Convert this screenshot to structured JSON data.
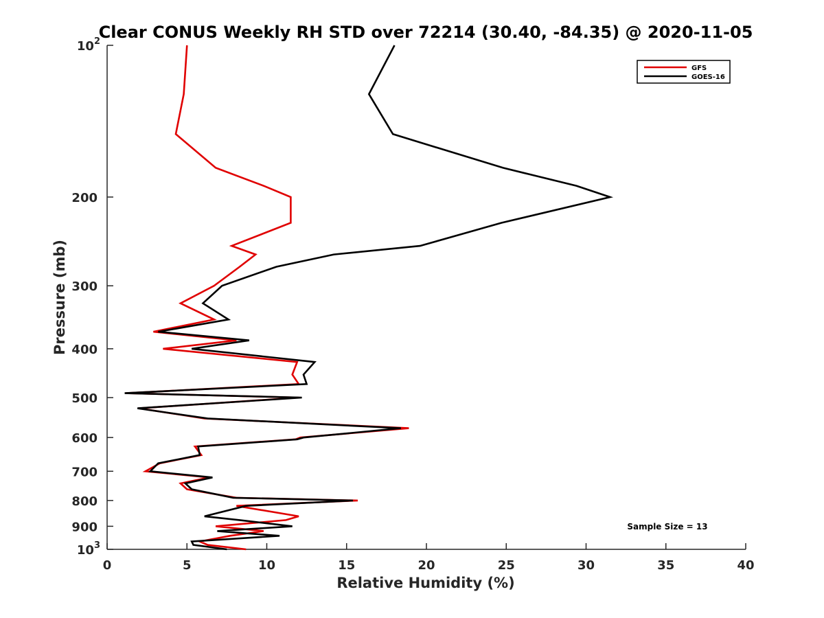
{
  "chart_data": {
    "type": "line",
    "title": "Clear CONUS Weekly RH STD over 72214 (30.40, -84.35) @ 2020-11-05",
    "xlabel": "Relative Humidity (%)",
    "ylabel": "Pressure (mb)",
    "xlim": [
      0,
      40
    ],
    "ylim": [
      100,
      1000
    ],
    "yscale": "log",
    "yreversed": true,
    "grid": false,
    "legend_position": "top-right",
    "x_ticks": [
      "0",
      "5",
      "10",
      "15",
      "20",
      "25",
      "30",
      "35",
      "40"
    ],
    "y_ticks": [
      {
        "value": 100,
        "base": "10",
        "exp": "2"
      },
      {
        "value": 200,
        "label": "200"
      },
      {
        "value": 300,
        "label": "300"
      },
      {
        "value": 400,
        "label": "400"
      },
      {
        "value": 500,
        "label": "500"
      },
      {
        "value": 600,
        "label": "600"
      },
      {
        "value": 700,
        "label": "700"
      },
      {
        "value": 800,
        "label": "800"
      },
      {
        "value": 900,
        "label": "900"
      },
      {
        "value": 1000,
        "base": "10",
        "exp": "3"
      }
    ],
    "annotation": "Sample Size = 13",
    "series": [
      {
        "name": "GFS",
        "color": "#e00000",
        "points": [
          [
            5.0,
            100
          ],
          [
            4.8,
            125
          ],
          [
            4.3,
            150
          ],
          [
            6.8,
            175
          ],
          [
            9.8,
            190
          ],
          [
            11.5,
            200
          ],
          [
            11.5,
            225
          ],
          [
            7.8,
            250
          ],
          [
            9.3,
            260
          ],
          [
            8.3,
            275
          ],
          [
            6.7,
            300
          ],
          [
            4.6,
            325
          ],
          [
            6.7,
            350
          ],
          [
            2.9,
            370
          ],
          [
            8.1,
            385
          ],
          [
            3.5,
            400
          ],
          [
            11.9,
            425
          ],
          [
            11.6,
            450
          ],
          [
            12.0,
            470
          ],
          [
            1.2,
            490
          ],
          [
            12.0,
            500
          ],
          [
            2.0,
            525
          ],
          [
            6.1,
            550
          ],
          [
            18.9,
            575
          ],
          [
            12.1,
            600
          ],
          [
            11.8,
            605
          ],
          [
            5.5,
            625
          ],
          [
            5.9,
            650
          ],
          [
            3.3,
            675
          ],
          [
            2.4,
            700
          ],
          [
            6.4,
            720
          ],
          [
            4.6,
            740
          ],
          [
            5.0,
            760
          ],
          [
            8.1,
            790
          ],
          [
            15.7,
            800
          ],
          [
            8.1,
            820
          ],
          [
            12.0,
            860
          ],
          [
            11.2,
            875
          ],
          [
            6.8,
            900
          ],
          [
            9.8,
            920
          ],
          [
            7.7,
            940
          ],
          [
            5.8,
            965
          ],
          [
            6.3,
            980
          ],
          [
            8.7,
            1000
          ]
        ]
      },
      {
        "name": "GOES-16",
        "color": "#000000",
        "points": [
          [
            18.0,
            100
          ],
          [
            16.4,
            125
          ],
          [
            17.9,
            150
          ],
          [
            24.8,
            175
          ],
          [
            29.4,
            190
          ],
          [
            31.5,
            200
          ],
          [
            24.7,
            225
          ],
          [
            19.6,
            250
          ],
          [
            14.2,
            260
          ],
          [
            10.6,
            275
          ],
          [
            7.2,
            300
          ],
          [
            6.0,
            325
          ],
          [
            7.6,
            350
          ],
          [
            3.2,
            370
          ],
          [
            8.9,
            385
          ],
          [
            5.3,
            400
          ],
          [
            13.0,
            425
          ],
          [
            12.3,
            450
          ],
          [
            12.5,
            470
          ],
          [
            1.1,
            490
          ],
          [
            12.2,
            500
          ],
          [
            1.9,
            525
          ],
          [
            6.3,
            550
          ],
          [
            18.4,
            575
          ],
          [
            12.3,
            600
          ],
          [
            11.9,
            605
          ],
          [
            5.7,
            625
          ],
          [
            5.8,
            650
          ],
          [
            3.2,
            675
          ],
          [
            2.7,
            700
          ],
          [
            6.6,
            720
          ],
          [
            4.9,
            740
          ],
          [
            5.3,
            760
          ],
          [
            7.9,
            790
          ],
          [
            15.4,
            800
          ],
          [
            8.7,
            820
          ],
          [
            6.1,
            860
          ],
          [
            8.3,
            875
          ],
          [
            11.6,
            900
          ],
          [
            6.9,
            920
          ],
          [
            10.8,
            940
          ],
          [
            5.3,
            965
          ],
          [
            5.4,
            980
          ],
          [
            7.5,
            1000
          ]
        ]
      }
    ]
  }
}
